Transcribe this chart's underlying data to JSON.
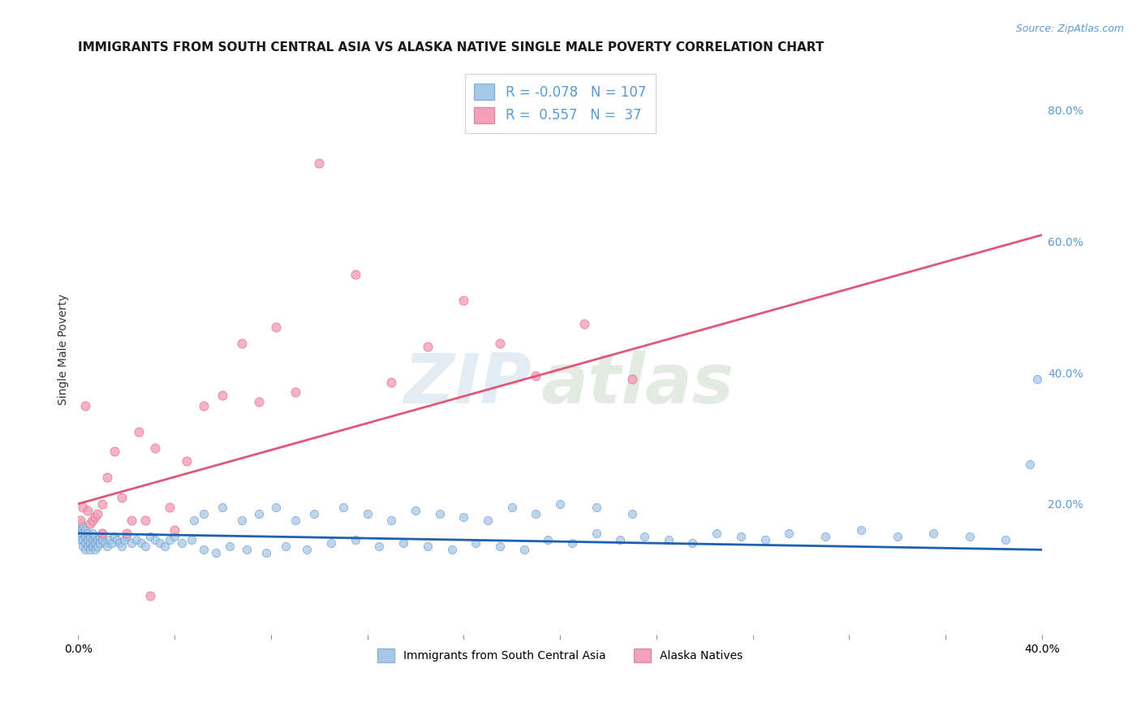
{
  "title": "IMMIGRANTS FROM SOUTH CENTRAL ASIA VS ALASKA NATIVE SINGLE MALE POVERTY CORRELATION CHART",
  "source_text": "Source: ZipAtlas.com",
  "ylabel": "Single Male Poverty",
  "watermark_zip": "ZIP",
  "watermark_atlas": "atlas",
  "x_min": 0.0,
  "x_max": 0.4,
  "y_min": 0.0,
  "y_max": 0.87,
  "y_ticks": [
    0.0,
    0.2,
    0.4,
    0.6,
    0.8
  ],
  "y_tick_labels": [
    "",
    "20.0%",
    "40.0%",
    "60.0%",
    "80.0%"
  ],
  "x_ticks": [
    0.0,
    0.04,
    0.08,
    0.12,
    0.16,
    0.2,
    0.24,
    0.28,
    0.32,
    0.36,
    0.4
  ],
  "x_tick_labels": [
    "0.0%",
    "",
    "",
    "",
    "",
    "",
    "",
    "",
    "",
    "",
    "40.0%"
  ],
  "blue_color": "#a8c8e8",
  "pink_color": "#f4a0b8",
  "blue_line_color": "#2060b0",
  "pink_line_color": "#e05878",
  "legend_blue_label": "Immigrants from South Central Asia",
  "legend_pink_label": "Alaska Natives",
  "R_blue": -0.078,
  "N_blue": 107,
  "R_pink": 0.557,
  "N_pink": 37,
  "blue_trend_x": [
    0.0,
    0.4
  ],
  "blue_trend_y": [
    0.155,
    0.13
  ],
  "pink_trend_x": [
    0.0,
    0.4
  ],
  "pink_trend_y": [
    0.2,
    0.61
  ],
  "background_color": "#ffffff",
  "grid_color": "#cccccc",
  "title_fontsize": 11,
  "axis_label_fontsize": 10,
  "tick_fontsize": 10,
  "blue_scatter_x": [
    0.001,
    0.001,
    0.001,
    0.001,
    0.002,
    0.002,
    0.002,
    0.002,
    0.003,
    0.003,
    0.003,
    0.003,
    0.004,
    0.004,
    0.004,
    0.005,
    0.005,
    0.005,
    0.006,
    0.006,
    0.006,
    0.007,
    0.007,
    0.007,
    0.008,
    0.008,
    0.009,
    0.009,
    0.01,
    0.01,
    0.011,
    0.012,
    0.013,
    0.014,
    0.015,
    0.016,
    0.017,
    0.018,
    0.019,
    0.02,
    0.022,
    0.024,
    0.026,
    0.028,
    0.03,
    0.032,
    0.034,
    0.036,
    0.038,
    0.04,
    0.043,
    0.047,
    0.052,
    0.057,
    0.063,
    0.07,
    0.078,
    0.086,
    0.095,
    0.105,
    0.115,
    0.125,
    0.135,
    0.145,
    0.155,
    0.165,
    0.175,
    0.185,
    0.195,
    0.205,
    0.215,
    0.225,
    0.235,
    0.245,
    0.255,
    0.265,
    0.275,
    0.285,
    0.295,
    0.31,
    0.325,
    0.34,
    0.355,
    0.37,
    0.385,
    0.395,
    0.398,
    0.048,
    0.052,
    0.06,
    0.068,
    0.075,
    0.082,
    0.09,
    0.098,
    0.11,
    0.12,
    0.13,
    0.14,
    0.15,
    0.16,
    0.17,
    0.18,
    0.19,
    0.2,
    0.215,
    0.23
  ],
  "blue_scatter_y": [
    0.16,
    0.17,
    0.145,
    0.155,
    0.165,
    0.155,
    0.145,
    0.135,
    0.15,
    0.16,
    0.14,
    0.13,
    0.155,
    0.145,
    0.135,
    0.15,
    0.14,
    0.13,
    0.145,
    0.155,
    0.135,
    0.15,
    0.14,
    0.13,
    0.145,
    0.135,
    0.15,
    0.14,
    0.155,
    0.145,
    0.14,
    0.135,
    0.145,
    0.14,
    0.15,
    0.145,
    0.14,
    0.135,
    0.145,
    0.15,
    0.14,
    0.145,
    0.14,
    0.135,
    0.15,
    0.145,
    0.14,
    0.135,
    0.145,
    0.15,
    0.14,
    0.145,
    0.13,
    0.125,
    0.135,
    0.13,
    0.125,
    0.135,
    0.13,
    0.14,
    0.145,
    0.135,
    0.14,
    0.135,
    0.13,
    0.14,
    0.135,
    0.13,
    0.145,
    0.14,
    0.155,
    0.145,
    0.15,
    0.145,
    0.14,
    0.155,
    0.15,
    0.145,
    0.155,
    0.15,
    0.16,
    0.15,
    0.155,
    0.15,
    0.145,
    0.26,
    0.39,
    0.175,
    0.185,
    0.195,
    0.175,
    0.185,
    0.195,
    0.175,
    0.185,
    0.195,
    0.185,
    0.175,
    0.19,
    0.185,
    0.18,
    0.175,
    0.195,
    0.185,
    0.2,
    0.195,
    0.185
  ],
  "pink_scatter_x": [
    0.001,
    0.002,
    0.003,
    0.004,
    0.005,
    0.006,
    0.007,
    0.008,
    0.01,
    0.012,
    0.015,
    0.018,
    0.022,
    0.025,
    0.028,
    0.032,
    0.038,
    0.045,
    0.052,
    0.06,
    0.068,
    0.075,
    0.082,
    0.09,
    0.1,
    0.115,
    0.13,
    0.145,
    0.16,
    0.175,
    0.19,
    0.21,
    0.23,
    0.01,
    0.02,
    0.03,
    0.04
  ],
  "pink_scatter_y": [
    0.175,
    0.195,
    0.35,
    0.19,
    0.17,
    0.175,
    0.18,
    0.185,
    0.2,
    0.24,
    0.28,
    0.21,
    0.175,
    0.31,
    0.175,
    0.285,
    0.195,
    0.265,
    0.35,
    0.365,
    0.445,
    0.355,
    0.47,
    0.37,
    0.72,
    0.55,
    0.385,
    0.44,
    0.51,
    0.445,
    0.395,
    0.475,
    0.39,
    0.155,
    0.155,
    0.06,
    0.16
  ]
}
